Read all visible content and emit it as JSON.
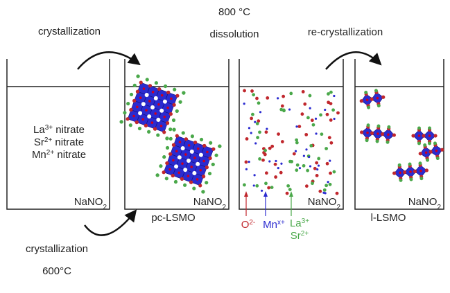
{
  "arrows": {
    "step1": "crystallization",
    "step2_temp": "800 °C",
    "step2": "dissolution",
    "step3": "re-crystallization",
    "bottom": "crystallization",
    "bottom_temp": "600°C"
  },
  "precursors": [
    {
      "ion": "La",
      "charge": "3+",
      "name": " nitrate"
    },
    {
      "ion": "Sr",
      "charge": "2+",
      "name": " nitrate"
    },
    {
      "ion": "Mn",
      "charge": "2+",
      "name": " nitrate"
    }
  ],
  "salt": {
    "base": "NaNO",
    "sub": "2"
  },
  "products": {
    "pc": "pc-LSMO",
    "l": "l-LSMO"
  },
  "species": [
    {
      "ion": "O",
      "charge": "2-",
      "color": "#c0272d"
    },
    {
      "ion": "Mn",
      "charge": "x+",
      "color": "#2b2bd0"
    },
    {
      "ion": "La",
      "charge": "3+",
      "color": "#4aa84a"
    },
    {
      "ion": "Sr",
      "charge": "2+",
      "color": "#4aa84a"
    }
  ]
}
